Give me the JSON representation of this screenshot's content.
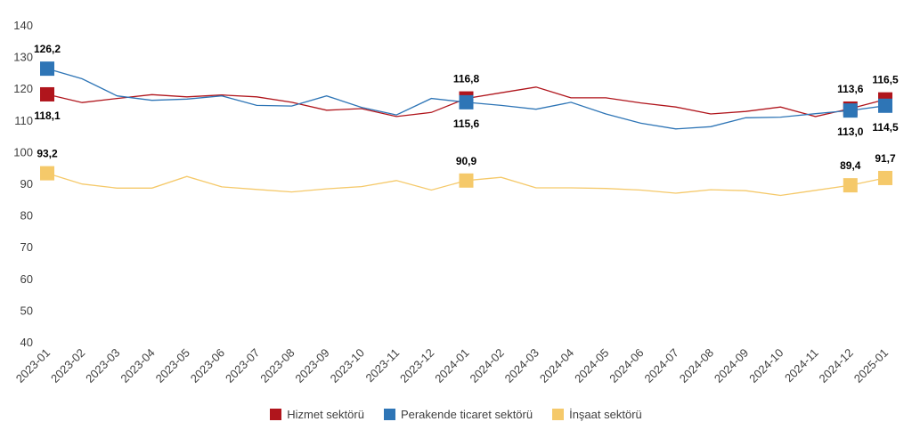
{
  "chart_data": {
    "type": "line",
    "title": "",
    "xlabel": "",
    "ylabel": "",
    "ylim": [
      40,
      140
    ],
    "yticks": [
      40,
      50,
      60,
      70,
      80,
      90,
      100,
      110,
      120,
      130,
      140
    ],
    "grid": false,
    "legend_position": "bottom",
    "categories": [
      "2023-01",
      "2023-02",
      "2023-03",
      "2023-04",
      "2023-05",
      "2023-06",
      "2023-07",
      "2023-08",
      "2023-09",
      "2023-10",
      "2023-11",
      "2023-12",
      "2024-01",
      "2024-02",
      "2024-03",
      "2024-04",
      "2024-05",
      "2024-06",
      "2024-07",
      "2024-08",
      "2024-09",
      "2024-10",
      "2024-11",
      "2024-12",
      "2025-01"
    ],
    "series": [
      {
        "name": "Hizmet sektörü",
        "color": "#b0151c",
        "values": [
          118.1,
          115.5,
          116.8,
          118.0,
          117.3,
          117.9,
          117.3,
          115.6,
          113.1,
          113.6,
          111.1,
          112.4,
          116.8,
          118.6,
          120.4,
          117.0,
          117.0,
          115.4,
          114.1,
          111.9,
          112.7,
          114.1,
          111.1,
          113.6,
          116.5
        ],
        "labels": [
          {
            "index": 0,
            "text": "118,1",
            "pos": "below"
          },
          {
            "index": 12,
            "text": "116,8",
            "pos": "above"
          },
          {
            "index": 23,
            "text": "113,6",
            "pos": "above"
          },
          {
            "index": 24,
            "text": "116,5",
            "pos": "above"
          }
        ]
      },
      {
        "name": "Perakende ticaret sektörü",
        "color": "#2e75b6",
        "values": [
          126.2,
          123.0,
          117.6,
          116.2,
          116.6,
          117.6,
          114.6,
          114.4,
          117.6,
          114.0,
          111.6,
          116.8,
          115.6,
          114.6,
          113.4,
          115.6,
          111.9,
          109.0,
          107.2,
          107.9,
          110.7,
          110.9,
          112.0,
          113.0,
          114.5
        ],
        "labels": [
          {
            "index": 0,
            "text": "126,2",
            "pos": "above"
          },
          {
            "index": 12,
            "text": "115,6",
            "pos": "below"
          },
          {
            "index": 23,
            "text": "113,0",
            "pos": "below"
          },
          {
            "index": 24,
            "text": "114,5",
            "pos": "below"
          }
        ]
      },
      {
        "name": "İnşaat sektörü",
        "color": "#f5c96a",
        "values": [
          93.2,
          89.8,
          88.5,
          88.5,
          92.2,
          88.9,
          88.1,
          87.3,
          88.3,
          89.0,
          90.9,
          87.9,
          90.9,
          91.9,
          88.6,
          88.6,
          88.4,
          87.9,
          86.9,
          88.0,
          87.7,
          86.2,
          87.8,
          89.4,
          91.7
        ],
        "labels": [
          {
            "index": 0,
            "text": "93,2",
            "pos": "above"
          },
          {
            "index": 12,
            "text": "90,9",
            "pos": "above"
          },
          {
            "index": 23,
            "text": "89,4",
            "pos": "above"
          },
          {
            "index": 24,
            "text": "91,7",
            "pos": "above"
          }
        ]
      }
    ]
  }
}
